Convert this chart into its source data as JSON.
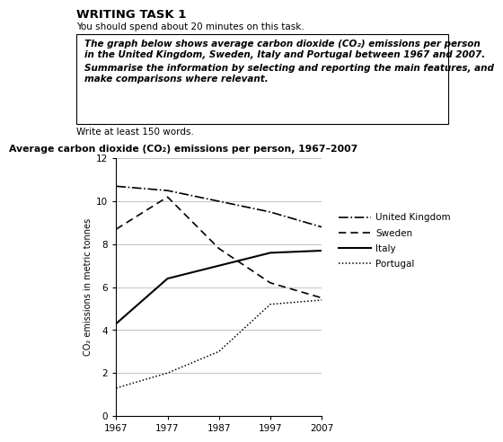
{
  "title_main": "WRITING TASK 1",
  "subtitle": "You should spend about 20 minutes on this task.",
  "box_line1": "The graph below shows average carbon dioxide (CO₂) emissions per person",
  "box_line2": "in the United Kingdom, Sweden, Italy and Portugal between 1967 and 2007.",
  "box_line3": "Summarise the information by selecting and reporting the main features, and",
  "box_line4": "make comparisons where relevant.",
  "write_text": "Write at least 150 words.",
  "chart_title": "Average carbon dioxide (CO₂) emissions per person, 1967–2007",
  "ylabel": "CO₂ emissions in metric tonnes",
  "years": [
    1967,
    1977,
    1987,
    1997,
    2007
  ],
  "united_kingdom": [
    10.7,
    10.5,
    10.0,
    9.5,
    8.8
  ],
  "sweden": [
    8.7,
    10.2,
    7.8,
    6.2,
    5.5
  ],
  "italy": [
    4.3,
    6.4,
    7.0,
    7.6,
    7.7
  ],
  "portugal": [
    1.3,
    2.0,
    3.0,
    5.2,
    5.4
  ],
  "ylim": [
    0,
    12
  ],
  "yticks": [
    0,
    2,
    4,
    6,
    8,
    10,
    12
  ],
  "background_color": "#ffffff",
  "line_color": "#000000",
  "grid_color": "#aaaaaa"
}
